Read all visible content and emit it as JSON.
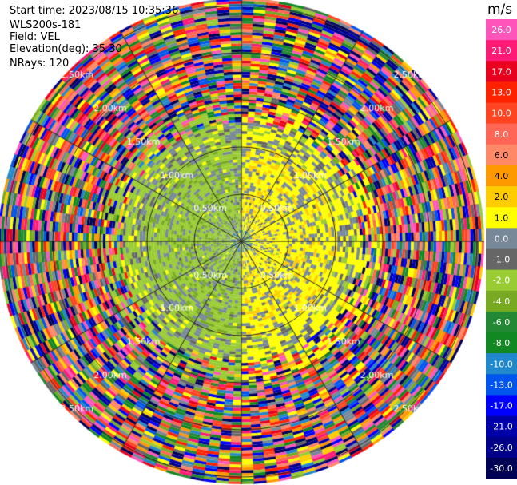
{
  "info": {
    "start_time": "Start time: 2023/08/15 10:35:36",
    "instrument": "WLS200s-181",
    "field": "Field: VEL",
    "elevation": "Elevation(deg): 35.30",
    "nrays": "NRays: 120"
  },
  "chart_data": {
    "type": "heatmap",
    "projection": "polar-ppi",
    "field": "VEL",
    "units": "m/s",
    "range_ring_labels": [
      "0.00km",
      "0.50km",
      "1.00km",
      "1.50km",
      "2.00km",
      "2.50km",
      "3.00km"
    ],
    "colorbar": {
      "label": "m/s",
      "ticks": [
        "26.0",
        "21.0",
        "17.0",
        "13.0",
        "10.0",
        "8.0",
        "6.0",
        "4.0",
        "2.0",
        "1.0",
        "0.0",
        "-1.0",
        "-2.0",
        "-4.0",
        "-6.0",
        "-8.0",
        "-10.0",
        "-13.0",
        "-17.0",
        "-21.0",
        "-26.0",
        "-30.0"
      ],
      "colors": [
        "#ff55bb",
        "#ff1a75",
        "#e8001f",
        "#ff2200",
        "#ff4422",
        "#ff6655",
        "#ff8866",
        "#ff9900",
        "#ffcc00",
        "#ffff00",
        "#778899",
        "#666666",
        "#99cc33",
        "#77aa22",
        "#228833",
        "#118822",
        "#2288cc",
        "#0055ee",
        "#0000ff",
        "#0000aa",
        "#000088",
        "#000055"
      ]
    },
    "structure": [
      {
        "range_km_max": 0.5,
        "dominant": "mixed-center"
      },
      {
        "range_km_max": 1.0,
        "dominant_left": "green (-1 to -4)",
        "dominant_right": "yellow (1 to 4)"
      },
      {
        "range_km_max": 1.5,
        "dominant_left": "green/grey",
        "dominant_right": "yellow/grey"
      },
      {
        "range_km_max": 3.2,
        "dominant": "noise (all colors)"
      }
    ]
  }
}
